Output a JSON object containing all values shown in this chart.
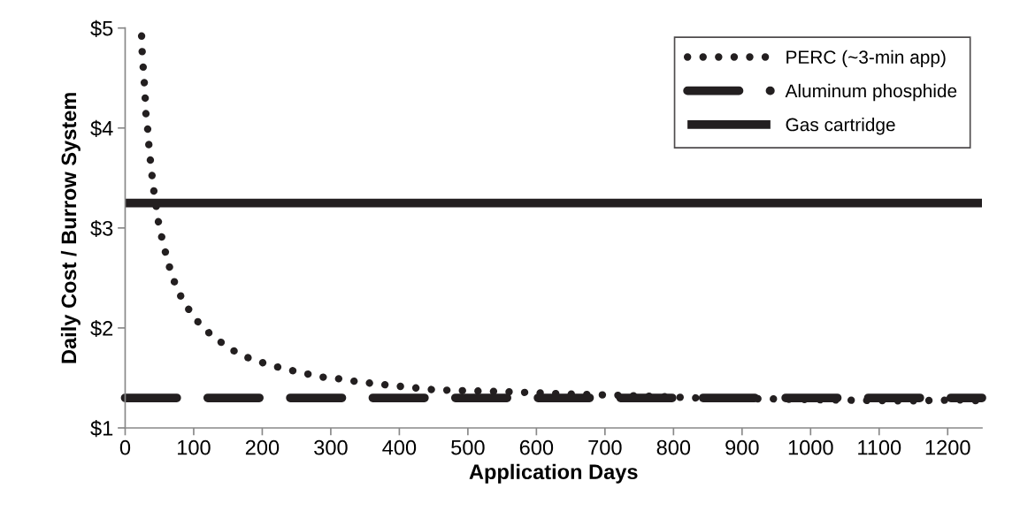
{
  "chart_data": {
    "type": "line",
    "xlabel": "Application Days",
    "ylabel": "Daily Cost / Burrow System",
    "xlim": [
      0,
      1250
    ],
    "xticks": [
      0,
      100,
      200,
      300,
      400,
      500,
      600,
      700,
      800,
      900,
      1000,
      1100,
      1200
    ],
    "ylim": [
      1,
      5
    ],
    "yticks": [
      {
        "value": 1,
        "label": "$1"
      },
      {
        "value": 2,
        "label": "$2"
      },
      {
        "value": 3,
        "label": "$3"
      },
      {
        "value": 4,
        "label": "$4"
      },
      {
        "value": 5,
        "label": "$5"
      }
    ],
    "grid": false,
    "legend": "top right",
    "series": [
      {
        "name": "PERC (~3-min app)",
        "color": "#231f20",
        "line_style": "dotted",
        "x": [
          24,
          25,
          27,
          29,
          30,
          33,
          35,
          38,
          41,
          45,
          49,
          55,
          62,
          70,
          81,
          95,
          112,
          133,
          156,
          180,
          206,
          233,
          259,
          286,
          314,
          341,
          368,
          395,
          453,
          564,
          645,
          753,
          833,
          945,
          1027,
          1136,
          1220,
          1247
        ],
        "values": [
          4.92,
          4.73,
          4.54,
          4.35,
          4.16,
          3.98,
          3.79,
          3.6,
          3.41,
          3.23,
          3.04,
          2.86,
          2.67,
          2.49,
          2.32,
          2.16,
          2.01,
          1.89,
          1.78,
          1.7,
          1.64,
          1.59,
          1.55,
          1.51,
          1.49,
          1.46,
          1.44,
          1.42,
          1.38,
          1.36,
          1.34,
          1.32,
          1.3,
          1.29,
          1.28,
          1.27,
          1.28,
          1.27
        ]
      },
      {
        "name": "Aluminum phosphide",
        "color": "#231f20",
        "line_style": "dashed",
        "x": [
          0,
          1250
        ],
        "values": [
          1.3,
          1.3
        ]
      },
      {
        "name": "Gas cartridge",
        "color": "#231f20",
        "line_style": "solid",
        "x": [
          0,
          1250
        ],
        "values": [
          3.25,
          3.25
        ]
      }
    ]
  }
}
